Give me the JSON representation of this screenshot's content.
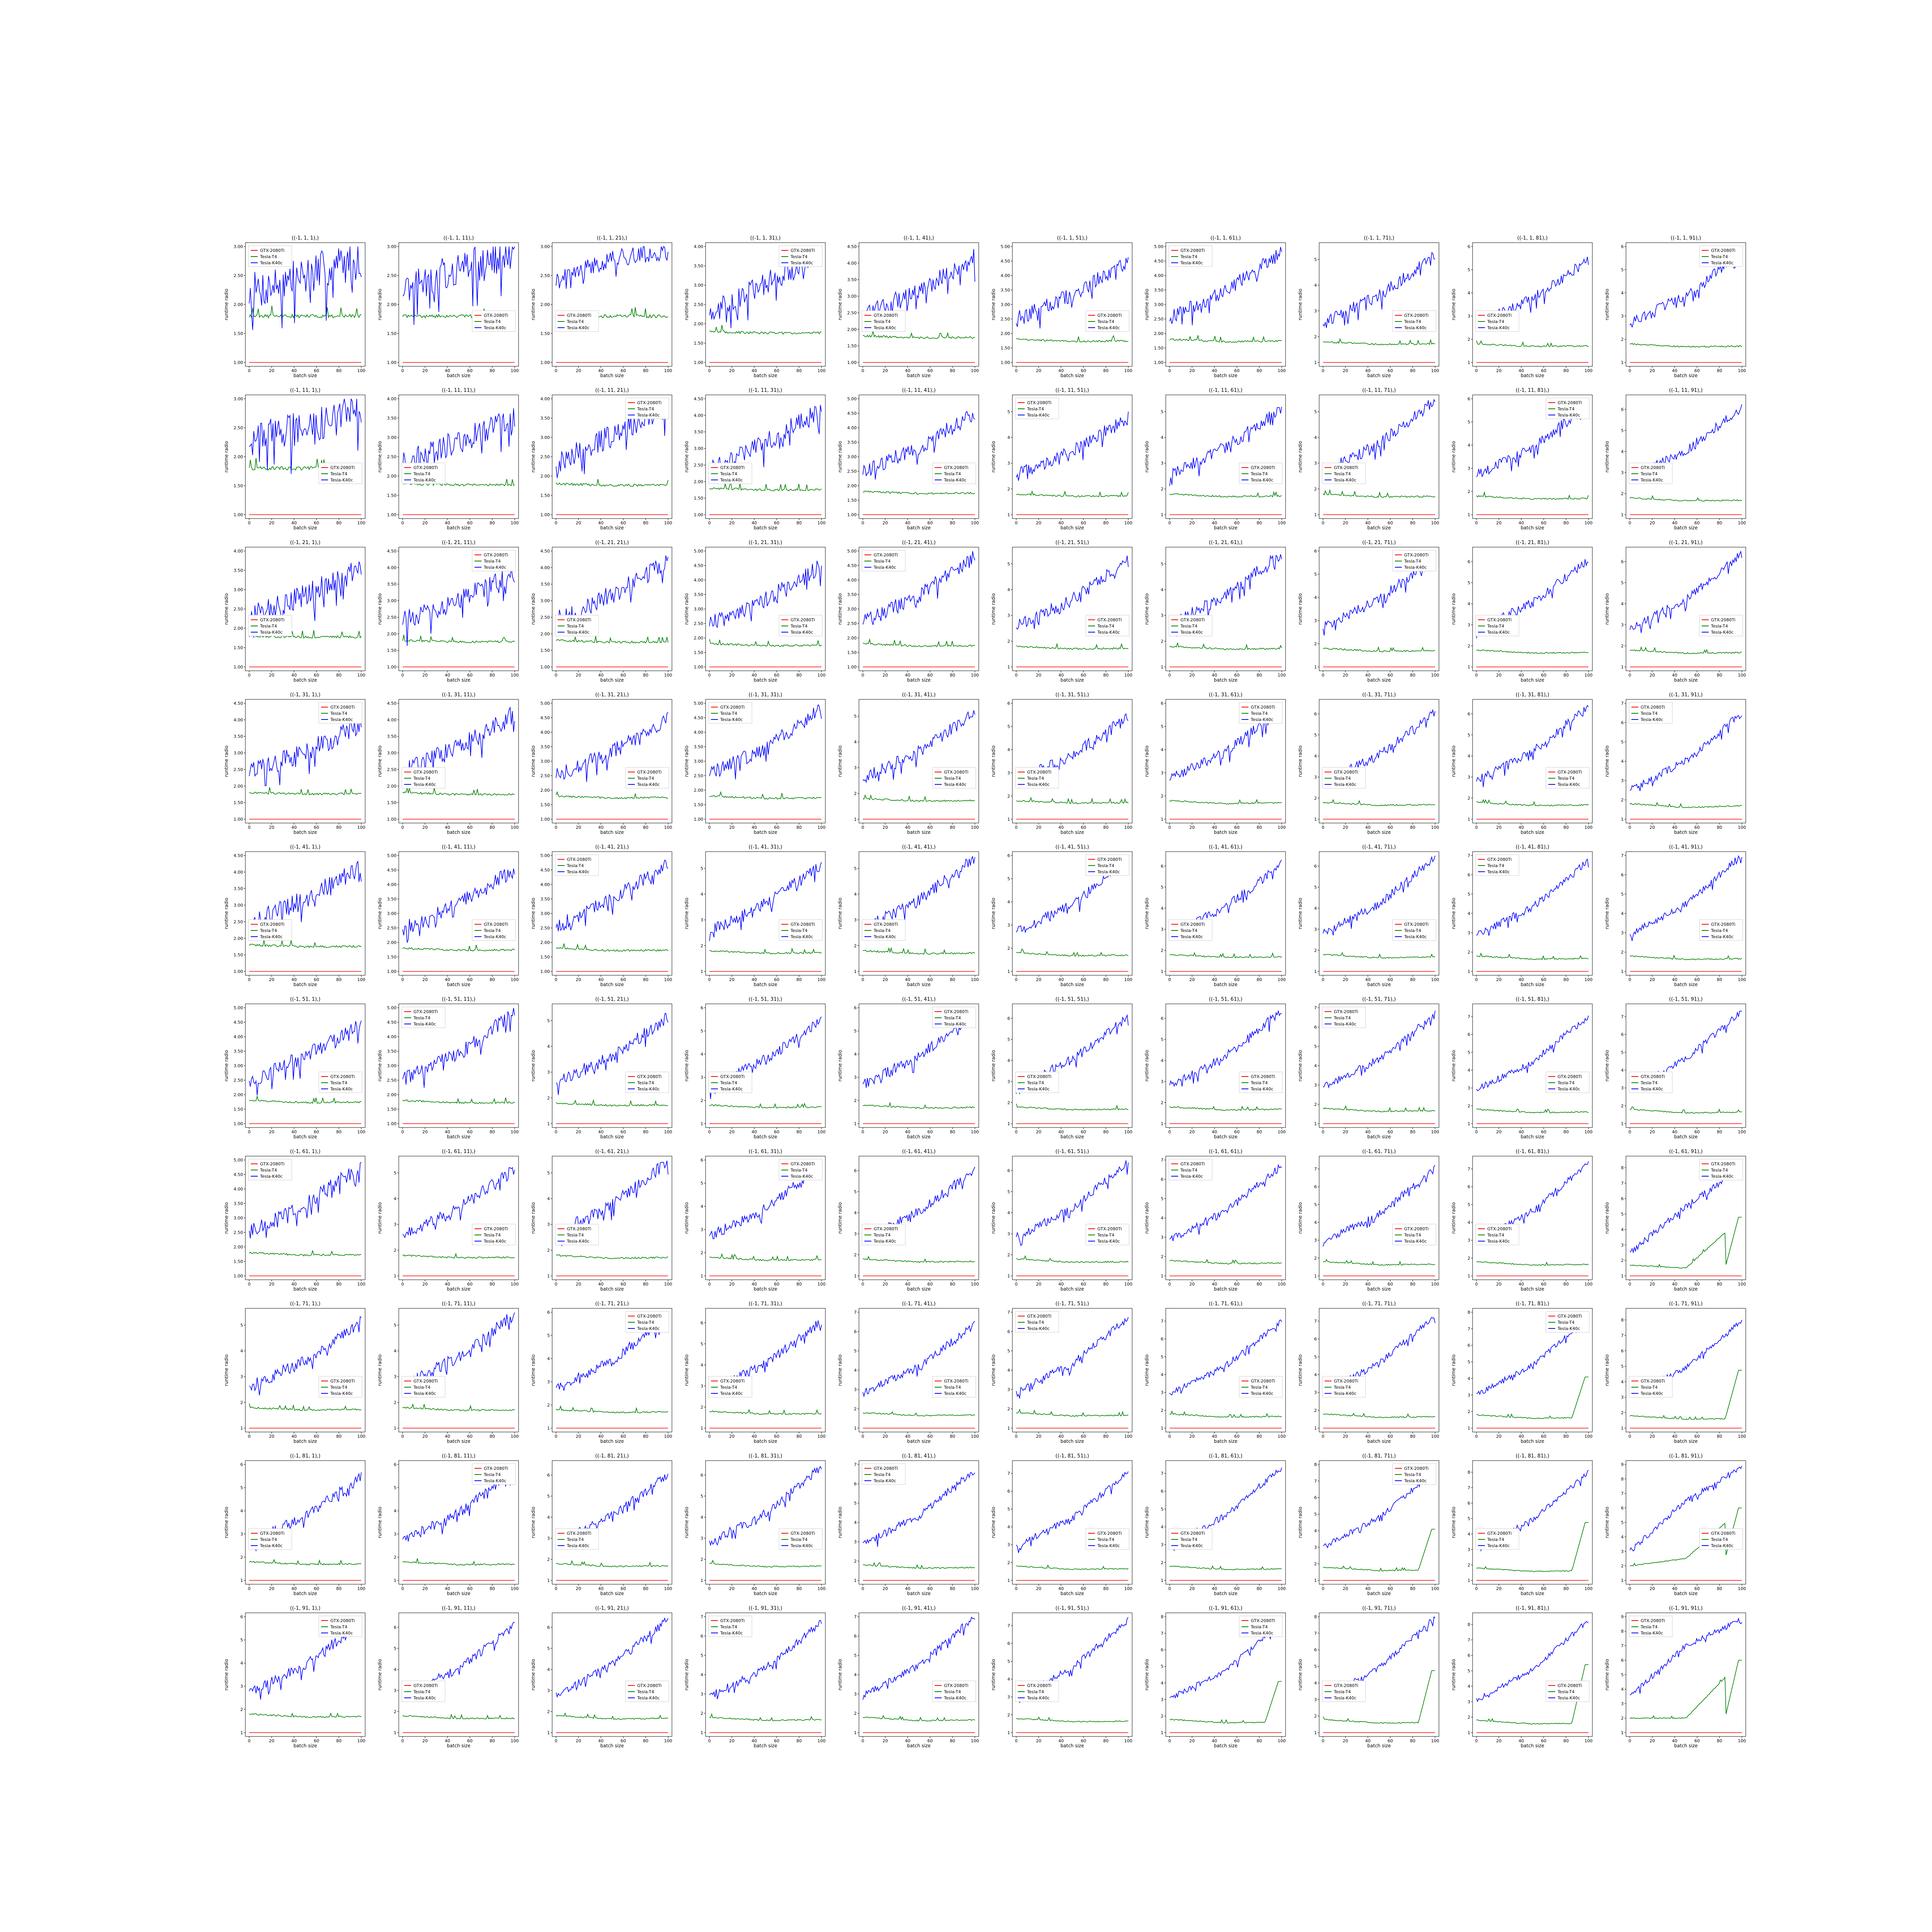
{
  "figure": {
    "rows": 10,
    "cols": 10,
    "row_labels": [
      1,
      11,
      21,
      31,
      41,
      51,
      61,
      71,
      81,
      91
    ],
    "col_labels": [
      1,
      11,
      21,
      31,
      41,
      51,
      61,
      71,
      81,
      91
    ],
    "title_template": "((-1, {r}, {c}),)",
    "xlabel": "batch size",
    "ylabel": "runtime radio",
    "series_names": [
      "GTX-2080Ti",
      "Tesla-T4",
      "Tesla-K40c"
    ],
    "colors": {
      "GTX-2080Ti": "#ff0000",
      "Tesla-T4": "#008000",
      "Tesla-K40c": "#0000ff"
    }
  },
  "chart_data": {
    "type": "line",
    "note": "10x10 grid of line subplots; x = batch size 1..100; y = runtime ratio relative to GTX-2080Ti (constant 1.0). Values are approximate readings (start/mid/end and key features).",
    "x": {
      "min": 1,
      "max": 100,
      "ticks": [
        0,
        20,
        40,
        60,
        80,
        100
      ]
    },
    "subplots": [
      {
        "row": 1,
        "col": 1,
        "t4": [
          1.8,
          1.8,
          1.8
        ],
        "k40c": [
          2.2,
          2.5,
          2.8
        ],
        "k40c_noise": 0.35,
        "ylim": [
          1.0,
          3.0
        ]
      },
      {
        "row": 1,
        "col": 11,
        "t4": [
          1.8,
          1.8,
          1.8
        ],
        "k40c": [
          2.3,
          2.6,
          2.9
        ],
        "k40c_noise": 0.3,
        "ylim": [
          1.0,
          3.0
        ]
      },
      {
        "row": 1,
        "col": 21,
        "t4": [
          1.8,
          1.8,
          1.8
        ],
        "k40c": [
          2.4,
          2.8,
          2.9
        ],
        "k40c_noise": 0.15,
        "ylim": [
          1.0,
          3.0
        ]
      },
      {
        "row": 11,
        "col": 1,
        "t4": [
          1.8,
          1.8,
          1.8
        ],
        "k40c": [
          2.3,
          2.5,
          2.8
        ],
        "k40c_noise": 0.3,
        "ylim": [
          1.0,
          3.0
        ]
      },
      {
        "row": 31,
        "col": 91,
        "t4": [
          1.8,
          1.6,
          1.7
        ],
        "k40c": [
          2.5,
          4.0,
          6.5
        ],
        "k40c_noise": 0.2,
        "ylim": [
          1.0,
          7.0
        ]
      },
      {
        "row": 61,
        "col": 91,
        "t4": [
          1.7,
          1.5,
          4.8
        ],
        "k40c": [
          2.5,
          5.5,
          8.0
        ],
        "k40c_noise": 0.2,
        "ylim": [
          1.0,
          8.5
        ]
      },
      {
        "row": 81,
        "col": 91,
        "t4": [
          2.0,
          2.5,
          6.0
        ],
        "k40c": [
          3.0,
          6.5,
          8.8
        ],
        "k40c_noise": 0.2,
        "ylim": [
          1.0,
          9.0
        ]
      },
      {
        "row": 91,
        "col": 91,
        "t4": [
          2.0,
          2.0,
          6.0
        ],
        "k40c": [
          3.5,
          7.0,
          8.8
        ],
        "k40c_noise": 0.2,
        "ylim": [
          1.0,
          9.0
        ]
      }
    ],
    "general_trend": {
      "gtx_2080ti": 1.0,
      "tesla_t4": "about 1.8 at small sizes, drifting to about 1.5 for larger shapes; rises sharply (to about 5-6) near batch size 90-100 for the largest shapes",
      "tesla_k40c": "about 2.2-3.0 for the smallest shapes; grows with shape size, reaching about 8.8 for the largest shapes"
    }
  }
}
